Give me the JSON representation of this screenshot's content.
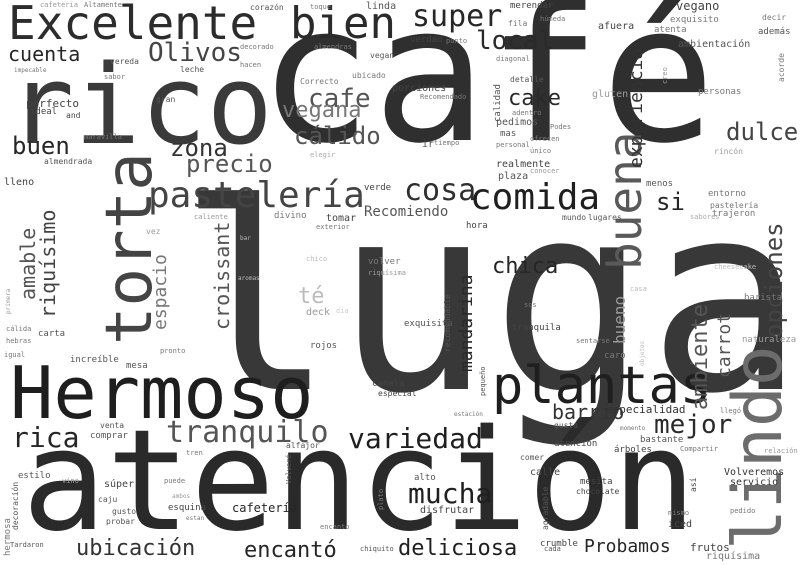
{
  "words": [
    {
      "text": "lugar",
      "color": "#383838"
    },
    {
      "text": "café",
      "color": "#2f2f2f"
    },
    {
      "text": "atención",
      "color": "#2a2a2a"
    },
    {
      "text": "rico",
      "color": "#3a3a3a"
    },
    {
      "text": "Hermoso",
      "color": "#1e1e1e"
    },
    {
      "text": "Excelente",
      "color": "#2c2c2c"
    },
    {
      "text": "lindo",
      "color": "#6c6c6c"
    },
    {
      "text": "torta",
      "color": "#444444"
    },
    {
      "text": "plantas",
      "color": "#1f1f1f"
    },
    {
      "text": "bien",
      "color": "#2a2a2a"
    },
    {
      "text": "buena",
      "color": "#595959"
    },
    {
      "text": "pastelería",
      "color": "#444444"
    },
    {
      "text": "comida",
      "color": "#1f1f1f"
    },
    {
      "text": "cosa",
      "color": "#2f2f2f"
    },
    {
      "text": "tranquilo",
      "color": "#555555"
    },
    {
      "text": "variedad",
      "color": "#1f1f1f"
    },
    {
      "text": "mucha",
      "color": "#1f1f1f"
    },
    {
      "text": "super",
      "color": "#262626"
    },
    {
      "text": "local",
      "color": "#2a2a2a"
    },
    {
      "text": "cafe",
      "color": "#555555"
    },
    {
      "text": "vegana",
      "color": "#777777"
    },
    {
      "text": "cálido",
      "color": "#555555"
    },
    {
      "text": "zona",
      "color": "#333333"
    },
    {
      "text": "precio",
      "color": "#555555"
    },
    {
      "text": "buen",
      "color": "#262626"
    },
    {
      "text": "cuenta",
      "color": "#262626"
    },
    {
      "text": "Olivos",
      "color": "#444444"
    },
    {
      "text": "cake",
      "color": "#2a2a2a"
    },
    {
      "text": "dulce",
      "color": "#444444"
    },
    {
      "text": "rica",
      "color": "#262626"
    },
    {
      "text": "mejor",
      "color": "#2a2a2a"
    },
    {
      "text": "chica",
      "color": "#262626"
    },
    {
      "text": "ubicación",
      "color": "#333333"
    },
    {
      "text": "encantó",
      "color": "#262626"
    },
    {
      "text": "deliciosa",
      "color": "#1f1f1f"
    },
    {
      "text": "Probamos",
      "color": "#262626"
    },
    {
      "text": "barrio",
      "color": "#333333"
    },
    {
      "text": "experiencia",
      "color": "#333333"
    },
    {
      "text": "opciones",
      "color": "#444444"
    },
    {
      "text": "ambiente",
      "color": "#555555"
    },
    {
      "text": "amable",
      "color": "#555555"
    },
    {
      "text": "riquísimo",
      "color": "#444444"
    },
    {
      "text": "espacio",
      "color": "#777777"
    },
    {
      "text": "croissant",
      "color": "#555555"
    },
    {
      "text": "mandarina",
      "color": "#2a2a2a"
    },
    {
      "text": "té",
      "color": "#bbbbbb"
    },
    {
      "text": "si",
      "color": "#262626"
    },
    {
      "text": "Recomiendo",
      "color": "#555555"
    },
    {
      "text": "bueno",
      "color": "#999999"
    },
    {
      "text": "carrot",
      "color": "#555555"
    },
    {
      "text": "perfecto",
      "color": "#444444"
    },
    {
      "text": "especialidad",
      "color": "#333333"
    },
    {
      "text": "cafetería",
      "color": "#262626"
    },
    {
      "text": "hermosa",
      "color": "#777777"
    },
    {
      "text": "frutos",
      "color": "#444444"
    },
    {
      "text": "riquísima",
      "color": "#777777"
    },
    {
      "text": "iced",
      "color": "#444444"
    },
    {
      "text": "Volveremos",
      "color": "#333333"
    },
    {
      "text": "servicio",
      "color": "#333333"
    },
    {
      "text": "chocolate",
      "color": "#444444"
    },
    {
      "text": "mesita",
      "color": "#444444"
    },
    {
      "text": "naturaleza",
      "color": "#999999"
    },
    {
      "text": "barista",
      "color": "#777777"
    },
    {
      "text": "entorno",
      "color": "#777777"
    },
    {
      "text": "pastelería",
      "color": "#777777"
    },
    {
      "text": "trajeron",
      "color": "#777777"
    },
    {
      "text": "sabores",
      "color": "#aaaaaa"
    },
    {
      "text": "cheesecake",
      "color": "#bbbbbb"
    },
    {
      "text": "menos",
      "color": "#555555"
    },
    {
      "text": "gluten",
      "color": "#999999"
    },
    {
      "text": "personas",
      "color": "#777777"
    },
    {
      "text": "rincón",
      "color": "#999999"
    },
    {
      "text": "vegano",
      "color": "#444444"
    },
    {
      "text": "exquisito",
      "color": "#777777"
    },
    {
      "text": "atenta",
      "color": "#777777"
    },
    {
      "text": "además",
      "color": "#555555"
    },
    {
      "text": "decir",
      "color": "#777777"
    },
    {
      "text": "ambientación",
      "color": "#555555"
    },
    {
      "text": "acorde",
      "color": "#777777"
    },
    {
      "text": "creo",
      "color": "#999999"
    },
    {
      "text": "afuera",
      "color": "#444444"
    },
    {
      "text": "merendar",
      "color": "#444444"
    },
    {
      "text": "húmeda",
      "color": "#777777"
    },
    {
      "text": "fila",
      "color": "#777777"
    },
    {
      "text": "calidad",
      "color": "#555555"
    },
    {
      "text": "diagonal",
      "color": "#777777"
    },
    {
      "text": "detalle",
      "color": "#555555"
    },
    {
      "text": "adentro",
      "color": "#777777"
    },
    {
      "text": "pedimos",
      "color": "#555555"
    },
    {
      "text": "mas",
      "color": "#555555"
    },
    {
      "text": "ofrecen",
      "color": "#777777"
    },
    {
      "text": "Podes",
      "color": "#777777"
    },
    {
      "text": "personal",
      "color": "#777777"
    },
    {
      "text": "único",
      "color": "#777777"
    },
    {
      "text": "realmente",
      "color": "#444444"
    },
    {
      "text": "conocer",
      "color": "#999999"
    },
    {
      "text": "plaza",
      "color": "#555555"
    },
    {
      "text": "mundo",
      "color": "#555555"
    },
    {
      "text": "lugares",
      "color": "#555555"
    },
    {
      "text": "hora",
      "color": "#444444"
    },
    {
      "text": "tomar",
      "color": "#444444"
    },
    {
      "text": "verde",
      "color": "#444444"
    },
    {
      "text": "divino",
      "color": "#777777"
    },
    {
      "text": "exterior",
      "color": "#777777"
    },
    {
      "text": "caliente",
      "color": "#999999"
    },
    {
      "text": "ir",
      "color": "#555555"
    },
    {
      "text": "tiempo",
      "color": "#777777"
    },
    {
      "text": "elegir",
      "color": "#aaaaaa"
    },
    {
      "text": "porciones",
      "color": "#444444"
    },
    {
      "text": "Recomendado",
      "color": "#777777"
    },
    {
      "text": "verdad",
      "color": "#444444"
    },
    {
      "text": "punto",
      "color": "#777777"
    },
    {
      "text": "vegan",
      "color": "#555555"
    },
    {
      "text": "ubicado",
      "color": "#777777"
    },
    {
      "text": "Correcto",
      "color": "#777777"
    },
    {
      "text": "decorado",
      "color": "#777777"
    },
    {
      "text": "almendras",
      "color": "#777777"
    },
    {
      "text": "hacen",
      "color": "#777777"
    },
    {
      "text": "leche",
      "color": "#555555"
    },
    {
      "text": "vereda",
      "color": "#555555"
    },
    {
      "text": "sabor",
      "color": "#777777"
    },
    {
      "text": "gran",
      "color": "#555555"
    },
    {
      "text": "impecable",
      "color": "#777777"
    },
    {
      "text": "ideal",
      "color": "#444444"
    },
    {
      "text": "and",
      "color": "#444444"
    },
    {
      "text": "maravilla",
      "color": "#777777"
    },
    {
      "text": "almendrada",
      "color": "#555555"
    },
    {
      "text": "lleno",
      "color": "#444444"
    },
    {
      "text": "cafetería",
      "color": "#999999"
    },
    {
      "text": "Altamente",
      "color": "#777777"
    },
    {
      "text": "corazón",
      "color": "#555555"
    },
    {
      "text": "toque",
      "color": "#777777"
    },
    {
      "text": "linda",
      "color": "#555555"
    },
    {
      "text": "vez",
      "color": "#999999"
    },
    {
      "text": "bar",
      "color": "#bbbbbb"
    },
    {
      "text": "chico",
      "color": "#bbbbbb"
    },
    {
      "text": "volver",
      "color": "#777777"
    },
    {
      "text": "riquísima",
      "color": "#999999"
    },
    {
      "text": "aromas",
      "color": "#bbbbbb"
    },
    {
      "text": "deck",
      "color": "#999999"
    },
    {
      "text": "día",
      "color": "#cccccc"
    },
    {
      "text": "exquisita",
      "color": "#555555"
    },
    {
      "text": "rojos",
      "color": "#555555"
    },
    {
      "text": "pronto",
      "color": "#777777"
    },
    {
      "text": "recomendable",
      "color": "#555555"
    },
    {
      "text": "sos",
      "color": "#777777"
    },
    {
      "text": "tranquila",
      "color": "#444444"
    },
    {
      "text": "carta",
      "color": "#555555"
    },
    {
      "text": "cálida",
      "color": "#777777"
    },
    {
      "text": "hebras",
      "color": "#777777"
    },
    {
      "text": "primera",
      "color": "#999999"
    },
    {
      "text": "igual",
      "color": "#777777"
    },
    {
      "text": "increíble",
      "color": "#555555"
    },
    {
      "text": "mesa",
      "color": "#555555"
    },
    {
      "text": "canela",
      "color": "#444444"
    },
    {
      "text": "especial",
      "color": "#444444"
    },
    {
      "text": "pequeño",
      "color": "#555555"
    },
    {
      "text": "sentarse",
      "color": "#777777"
    },
    {
      "text": "caro",
      "color": "#777777"
    },
    {
      "text": "objetos",
      "color": "#bbbbbb"
    },
    {
      "text": "casa",
      "color": "#bbbbbb"
    },
    {
      "text": "estación",
      "color": "#777777"
    },
    {
      "text": "gustó",
      "color": "#555555"
    },
    {
      "text": "momento",
      "color": "#777777"
    },
    {
      "text": "bastante",
      "color": "#555555"
    },
    {
      "text": "atencion",
      "color": "#444444"
    },
    {
      "text": "árboles",
      "color": "#444444"
    },
    {
      "text": "Compartir",
      "color": "#777777"
    },
    {
      "text": "llegó",
      "color": "#777777"
    },
    {
      "text": "relación",
      "color": "#999999"
    },
    {
      "text": "venta",
      "color": "#555555"
    },
    {
      "text": "comprar",
      "color": "#555555"
    },
    {
      "text": "alfajor",
      "color": "#555555"
    },
    {
      "text": "tren",
      "color": "#777777"
    },
    {
      "text": "comer",
      "color": "#555555"
    },
    {
      "text": "calle",
      "color": "#444444"
    },
    {
      "text": "estilo",
      "color": "#555555"
    },
    {
      "text": "vino",
      "color": "#999999"
    },
    {
      "text": "súper",
      "color": "#444444"
    },
    {
      "text": "caju",
      "color": "#555555"
    },
    {
      "text": "gusto",
      "color": "#555555"
    },
    {
      "text": "probar",
      "color": "#555555"
    },
    {
      "text": "puede",
      "color": "#777777"
    },
    {
      "text": "ambos",
      "color": "#999999"
    },
    {
      "text": "esquina",
      "color": "#444444"
    },
    {
      "text": "estan",
      "color": "#777777"
    },
    {
      "text": "Volveré",
      "color": "#555555"
    },
    {
      "text": "alto",
      "color": "#555555"
    },
    {
      "text": "disfrutar",
      "color": "#444444"
    },
    {
      "text": "plato",
      "color": "#777777"
    },
    {
      "text": "agradable",
      "color": "#555555"
    },
    {
      "text": "crumble",
      "color": "#444444"
    },
    {
      "text": "cada",
      "color": "#555555"
    },
    {
      "text": "chiquito",
      "color": "#555555"
    },
    {
      "text": "encanto",
      "color": "#777777"
    },
    {
      "text": "mismo",
      "color": "#777777"
    },
    {
      "text": "pedido",
      "color": "#777777"
    },
    {
      "text": "así",
      "color": "#444444"
    },
    {
      "text": "decoración",
      "color": "#555555"
    },
    {
      "text": "Tardaron",
      "color": "#555555"
    }
  ]
}
